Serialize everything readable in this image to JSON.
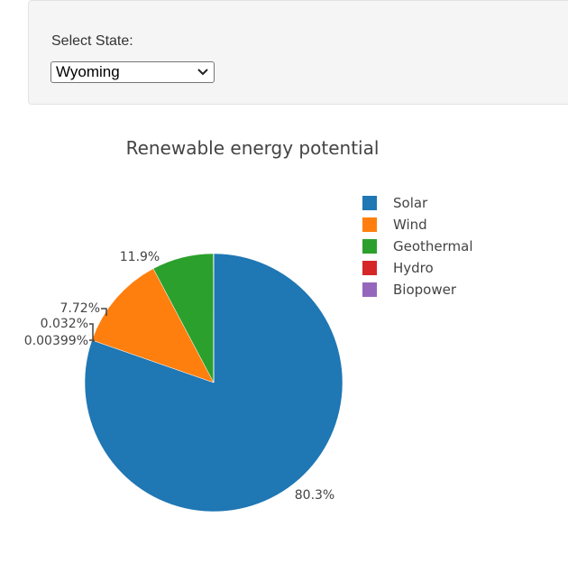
{
  "controls": {
    "select_label": "Select State:",
    "selected_state": "Wyoming"
  },
  "chart_data": {
    "type": "pie",
    "title": "Renewable energy potential",
    "labels": [
      "Solar",
      "Wind",
      "Geothermal",
      "Hydro",
      "Biopower"
    ],
    "values": [
      80.3,
      11.9,
      7.72,
      0.032,
      0.00399
    ],
    "percent_labels": [
      "80.3%",
      "11.9%",
      "7.72%",
      "0.032%",
      "0.00399%"
    ],
    "colors": [
      "#1f77b4",
      "#ff7f0e",
      "#2ca02c",
      "#d62728",
      "#9467bd"
    ],
    "legend_position": "right"
  }
}
